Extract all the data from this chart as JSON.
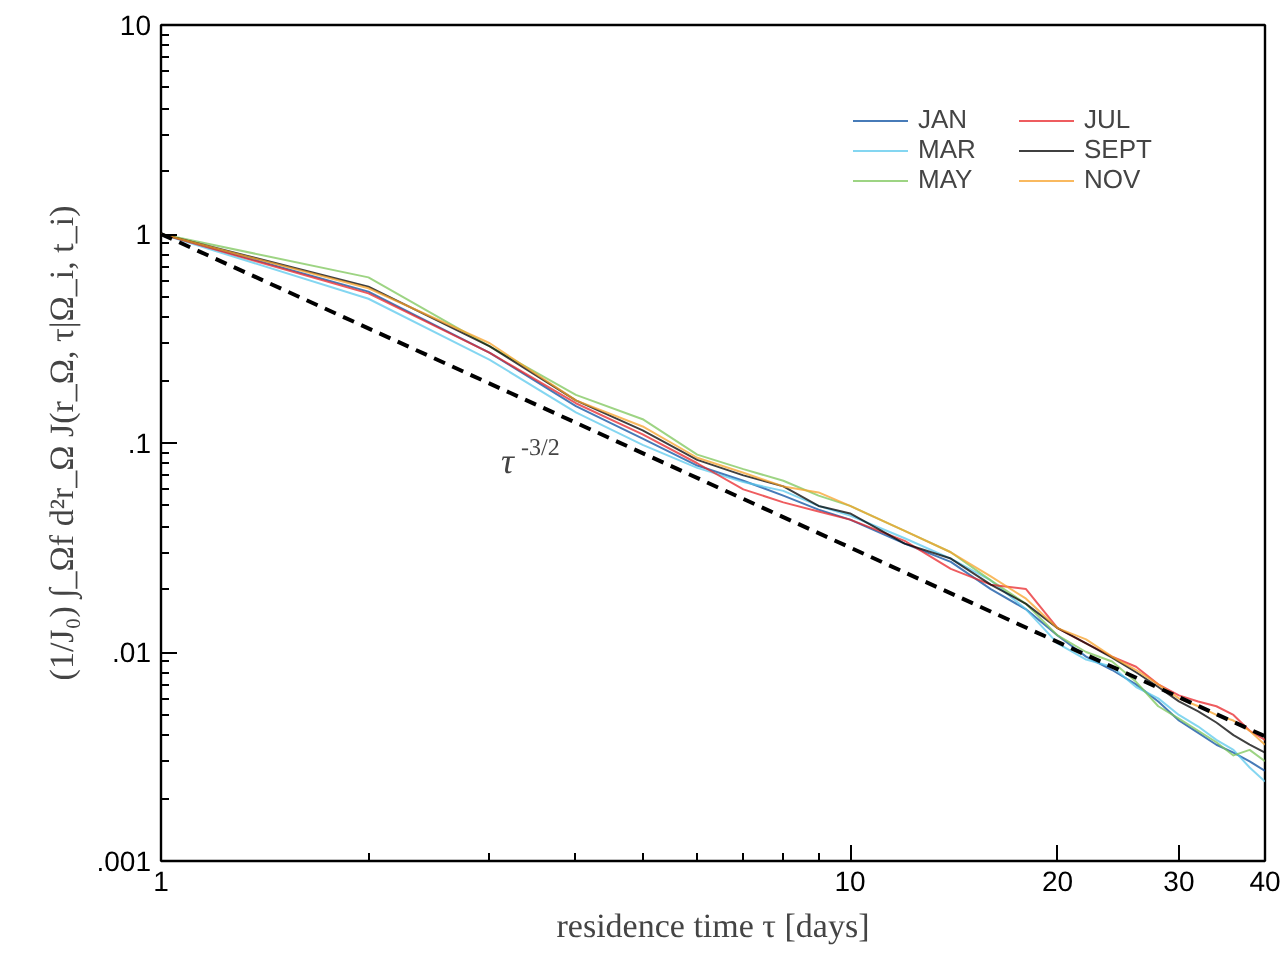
{
  "chart_data": {
    "type": "line",
    "xlabel": "residence time τ [days]",
    "ylabel": "(1/J₀) ∫_Ωf d²r_Ω J(r_Ω, τ|Ω_i, t_i)",
    "x": [
      1,
      2,
      3,
      4,
      5,
      6,
      7,
      8,
      9,
      10,
      12,
      14,
      16,
      18,
      20,
      22,
      24,
      26,
      28,
      30,
      32,
      34,
      36,
      38,
      40
    ],
    "series": [
      {
        "name": "JAN",
        "color": "#0a4fa0",
        "values": [
          1,
          0.53,
          0.27,
          0.15,
          0.105,
          0.078,
          0.066,
          0.056,
          0.048,
          0.043,
          0.033,
          0.027,
          0.02,
          0.016,
          0.012,
          0.0095,
          0.0082,
          0.007,
          0.0058,
          0.0047,
          0.0041,
          0.0036,
          0.0033,
          0.003,
          0.0027
        ]
      },
      {
        "name": "MAR",
        "color": "#5bc8ec",
        "values": [
          1,
          0.49,
          0.25,
          0.14,
          0.098,
          0.076,
          0.065,
          0.059,
          0.05,
          0.045,
          0.035,
          0.028,
          0.022,
          0.016,
          0.011,
          0.0092,
          0.0085,
          0.0068,
          0.006,
          0.005,
          0.0044,
          0.0038,
          0.0034,
          0.0028,
          0.0024
        ]
      },
      {
        "name": "MAY",
        "color": "#7cc65a",
        "values": [
          1,
          0.62,
          0.29,
          0.17,
          0.13,
          0.088,
          0.075,
          0.066,
          0.056,
          0.05,
          0.038,
          0.03,
          0.022,
          0.017,
          0.012,
          0.01,
          0.009,
          0.0072,
          0.0055,
          0.0048,
          0.0042,
          0.0037,
          0.0032,
          0.0034,
          0.003
        ]
      },
      {
        "name": "JUL",
        "color": "#e8262a",
        "values": [
          1,
          0.52,
          0.27,
          0.155,
          0.11,
          0.08,
          0.06,
          0.052,
          0.047,
          0.043,
          0.034,
          0.025,
          0.021,
          0.02,
          0.013,
          0.011,
          0.0095,
          0.0085,
          0.007,
          0.0062,
          0.0058,
          0.0055,
          0.005,
          0.0042,
          0.0038
        ]
      },
      {
        "name": "SEPT",
        "color": "#000000",
        "values": [
          1,
          0.56,
          0.29,
          0.16,
          0.115,
          0.083,
          0.07,
          0.062,
          0.05,
          0.046,
          0.033,
          0.028,
          0.021,
          0.017,
          0.013,
          0.011,
          0.0094,
          0.008,
          0.0068,
          0.0058,
          0.0052,
          0.0046,
          0.004,
          0.0036,
          0.0033
        ]
      },
      {
        "name": "NOV",
        "color": "#f7a12a",
        "values": [
          1,
          0.55,
          0.3,
          0.16,
          0.12,
          0.085,
          0.072,
          0.062,
          0.058,
          0.05,
          0.038,
          0.03,
          0.023,
          0.018,
          0.013,
          0.0115,
          0.0095,
          0.0082,
          0.007,
          0.006,
          0.0055,
          0.005,
          0.0047,
          0.0042,
          0.0036
        ]
      },
      {
        "type": "line",
        "line_style": "dashed",
        "color": "#000000",
        "x": [
          1,
          40
        ],
        "values": [
          1,
          0.00395
        ]
      }
    ],
    "annotations": [
      "τ$^{-3/2}$"
    ],
    "log": "xy",
    "xlim": [
      1,
      40
    ],
    "ylim": [
      0.001,
      10
    ],
    "xticks": [
      1,
      10,
      20,
      30,
      40
    ],
    "yticks": [
      {
        "value": 0.001,
        "label": ".001"
      },
      {
        "value": 0.01,
        "label": ".01"
      },
      {
        "value": 0.1,
        "label": ".1"
      },
      1,
      10
    ],
    "grid": false,
    "legend": "top right",
    "line_style": "solid"
  }
}
